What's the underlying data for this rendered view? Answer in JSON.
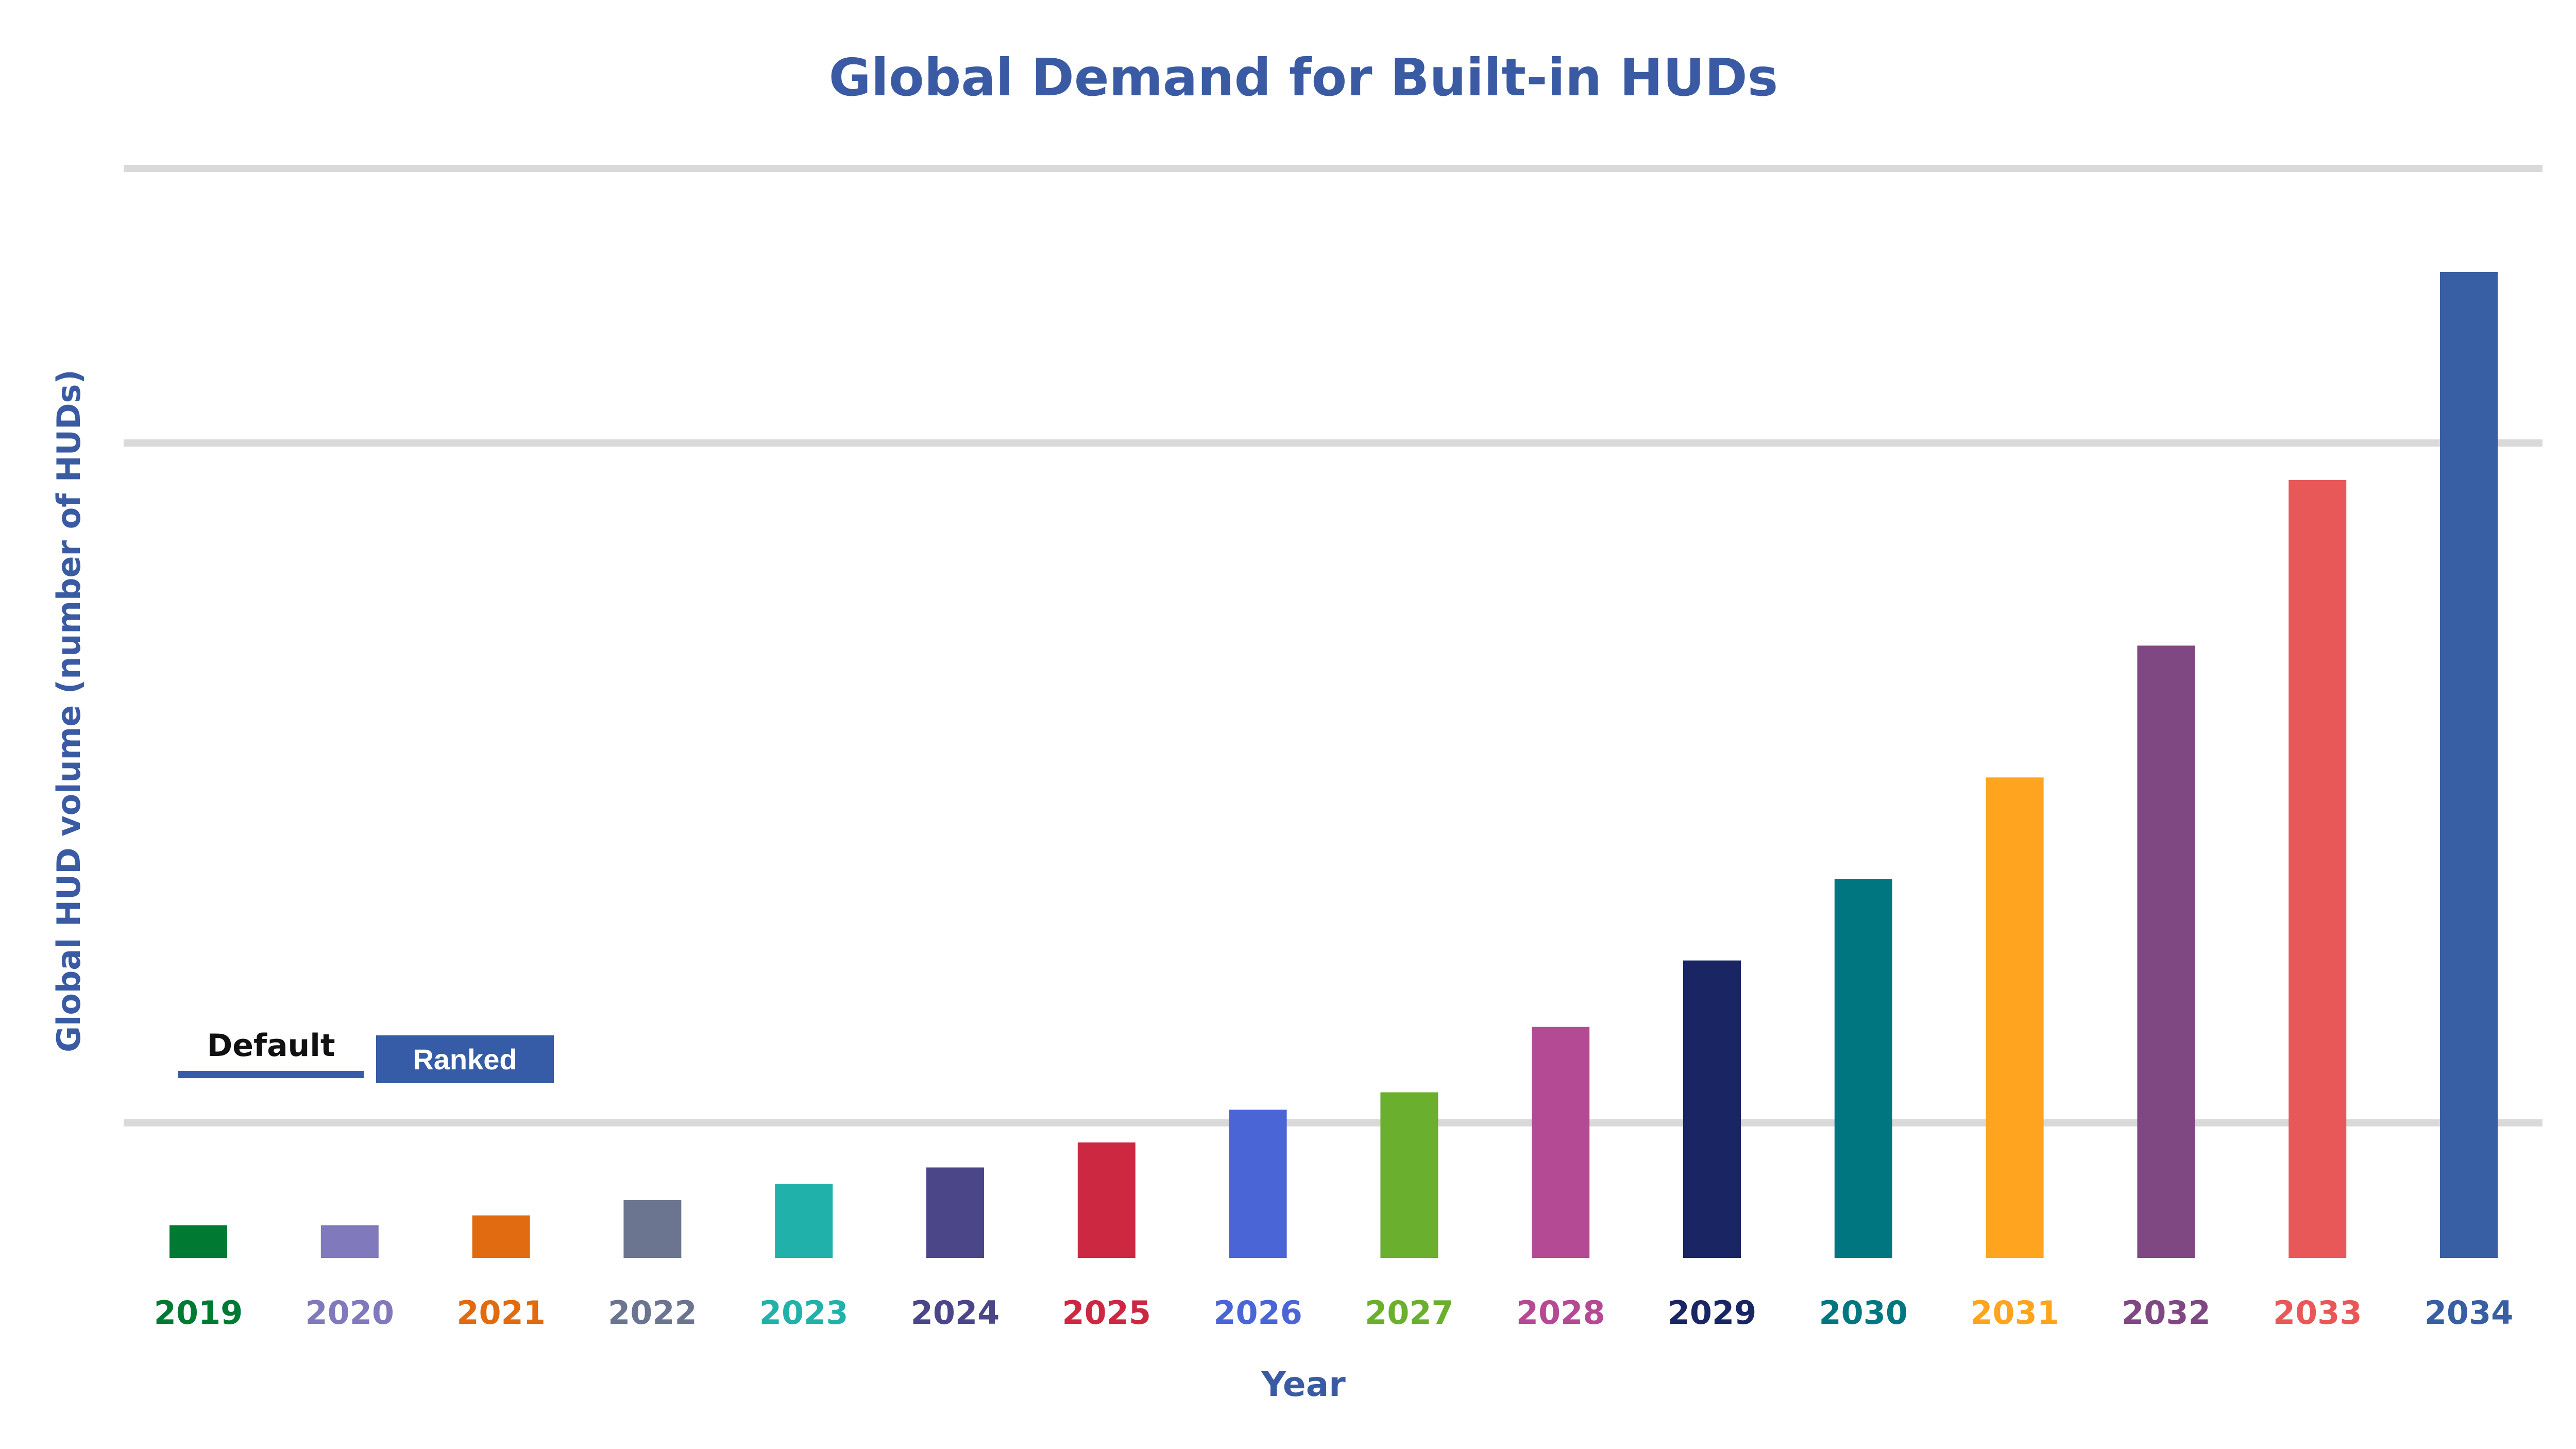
{
  "chart_data": {
    "type": "bar",
    "title": "Global Demand for Built-in HUDs",
    "xlabel": "Year",
    "ylabel": "Global HUD volume (number of HUDs)",
    "categories": [
      "2019",
      "2020",
      "2021",
      "2022",
      "2023",
      "2024",
      "2025",
      "2026",
      "2027",
      "2028",
      "2029",
      "2030",
      "2031",
      "2032",
      "2033",
      "2034"
    ],
    "values": [
      3.0,
      3.0,
      3.9,
      5.3,
      6.8,
      8.3,
      10.6,
      13.6,
      15.2,
      21.2,
      27.3,
      34.8,
      44.1,
      56.2,
      71.4,
      90.5
    ],
    "colors": [
      "#007a33",
      "#8079bb",
      "#e06b10",
      "#6b7590",
      "#20b2aa",
      "#4b4688",
      "#cc2842",
      "#4a65d6",
      "#6aaf2e",
      "#b44a93",
      "#1a2663",
      "#007780",
      "#ffa41f",
      "#7f4882",
      "#e95858",
      "#385ea3"
    ],
    "ylim": [
      0,
      100
    ],
    "gridlines": [
      12.4,
      74.8,
      100
    ],
    "grid": true,
    "title_color": "#3a5ba3"
  },
  "controls": {
    "toggle_text": "Default",
    "toggle_button": "Ranked"
  }
}
